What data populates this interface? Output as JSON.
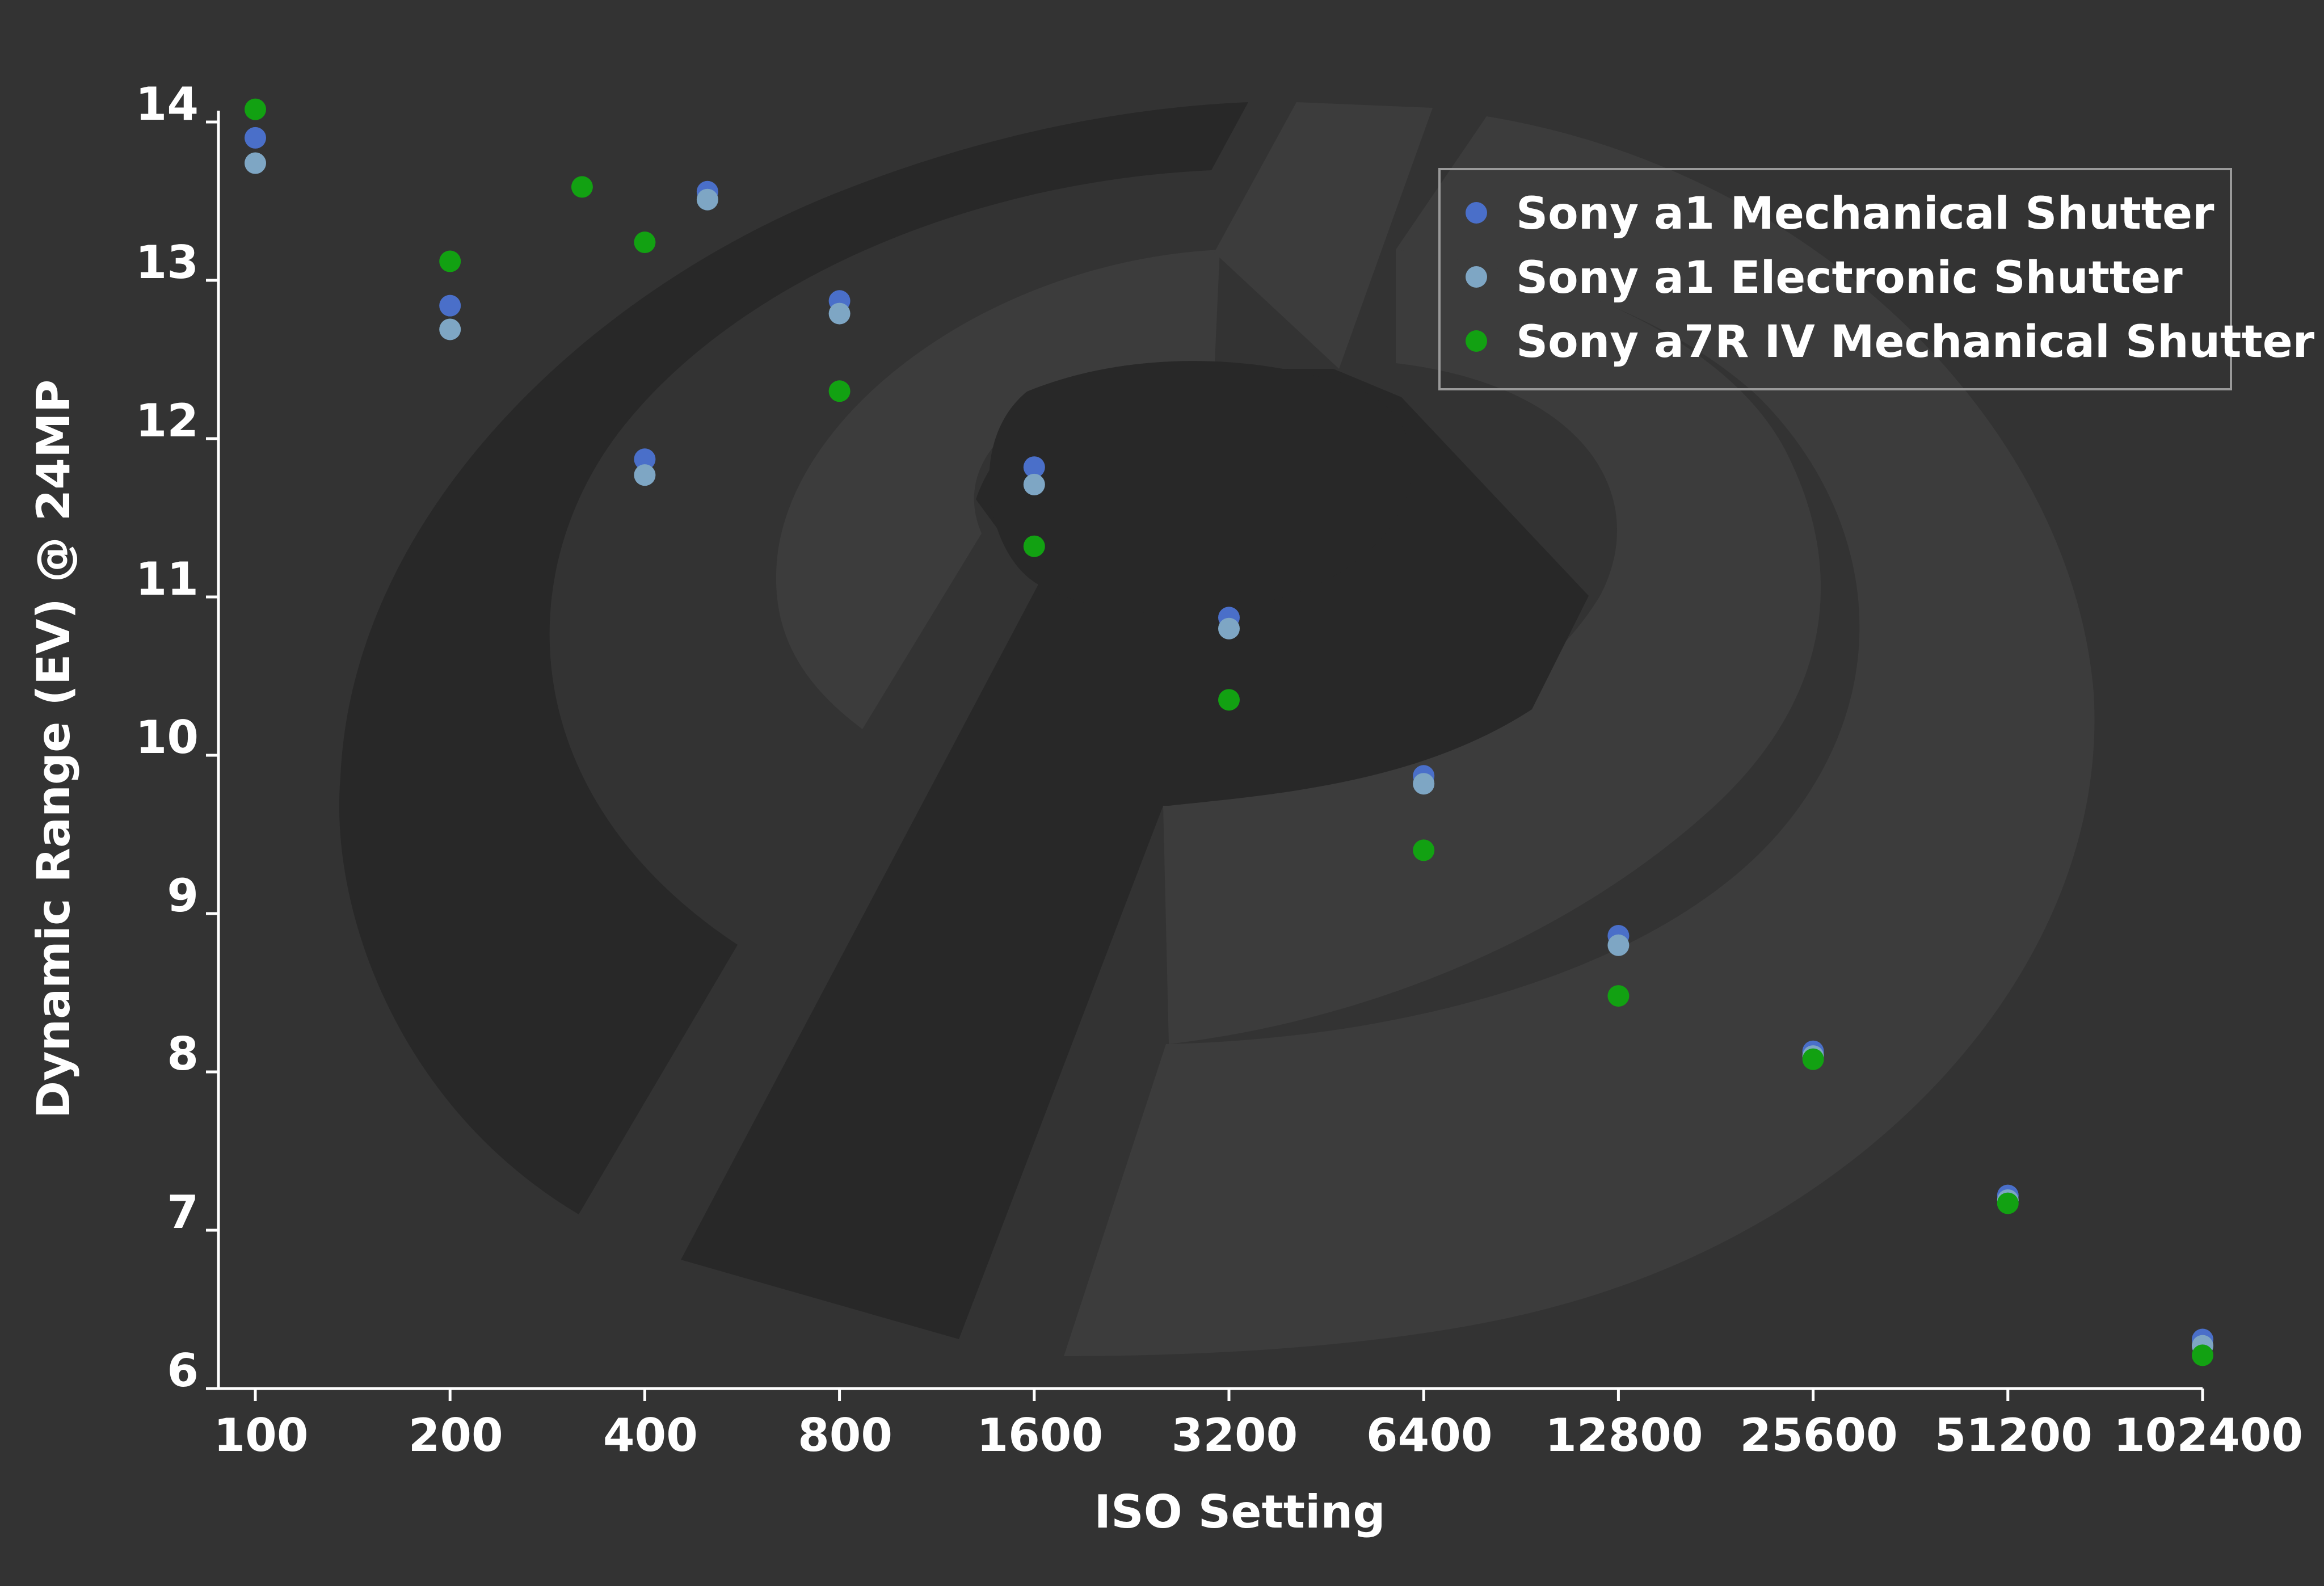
{
  "chart_data": {
    "type": "scatter",
    "title": "",
    "xlabel": "ISO Setting",
    "ylabel": "Dynamic Range (EV) @ 24MP",
    "x_scale": "log2",
    "xlim": [
      100,
      102400
    ],
    "ylim": [
      6,
      14
    ],
    "x_ticks": [
      "100",
      "200",
      "400",
      "800",
      "1600",
      "3200",
      "6400",
      "12800",
      "25600",
      "51200",
      "102400"
    ],
    "x_tick_values": [
      100,
      200,
      400,
      800,
      1600,
      3200,
      6400,
      12800,
      25600,
      51200,
      102400
    ],
    "y_ticks": [
      "6",
      "7",
      "8",
      "9",
      "10",
      "11",
      "12",
      "13",
      "14"
    ],
    "y_tick_values": [
      6,
      7,
      8,
      9,
      10,
      11,
      12,
      13,
      14
    ],
    "grid": false,
    "legend_position": "top-right",
    "series": [
      {
        "name": "Sony a1 Mechanical Shutter",
        "color": "#4a6fc9",
        "points": [
          {
            "x": 100,
            "y": 13.9
          },
          {
            "x": 200,
            "y": 12.84
          },
          {
            "x": 400,
            "y": 11.87
          },
          {
            "x": 500,
            "y": 13.56
          },
          {
            "x": 800,
            "y": 12.87
          },
          {
            "x": 1600,
            "y": 11.82
          },
          {
            "x": 3200,
            "y": 10.87
          },
          {
            "x": 6400,
            "y": 9.87
          },
          {
            "x": 12800,
            "y": 8.86
          },
          {
            "x": 25600,
            "y": 8.13
          },
          {
            "x": 51200,
            "y": 7.22
          },
          {
            "x": 102400,
            "y": 6.31
          }
        ]
      },
      {
        "name": "Sony a1 Electronic Shutter",
        "color": "#7ea6c4",
        "points": [
          {
            "x": 100,
            "y": 13.74
          },
          {
            "x": 200,
            "y": 12.69
          },
          {
            "x": 400,
            "y": 11.77
          },
          {
            "x": 500,
            "y": 13.51
          },
          {
            "x": 800,
            "y": 12.79
          },
          {
            "x": 1600,
            "y": 11.71
          },
          {
            "x": 3200,
            "y": 10.8
          },
          {
            "x": 6400,
            "y": 9.82
          },
          {
            "x": 12800,
            "y": 8.8
          },
          {
            "x": 25600,
            "y": 8.1
          },
          {
            "x": 51200,
            "y": 7.19
          },
          {
            "x": 102400,
            "y": 6.27
          }
        ]
      },
      {
        "name": "Sony a7R IV Mechanical Shutter",
        "color": "#12a112",
        "points": [
          {
            "x": 100,
            "y": 14.08
          },
          {
            "x": 200,
            "y": 13.12
          },
          {
            "x": 320,
            "y": 13.59
          },
          {
            "x": 400,
            "y": 13.24
          },
          {
            "x": 800,
            "y": 12.3
          },
          {
            "x": 1600,
            "y": 11.32
          },
          {
            "x": 3200,
            "y": 10.35
          },
          {
            "x": 6400,
            "y": 9.4
          },
          {
            "x": 12800,
            "y": 8.48
          },
          {
            "x": 25600,
            "y": 8.08
          },
          {
            "x": 51200,
            "y": 7.17
          },
          {
            "x": 102400,
            "y": 6.21
          }
        ]
      }
    ]
  }
}
